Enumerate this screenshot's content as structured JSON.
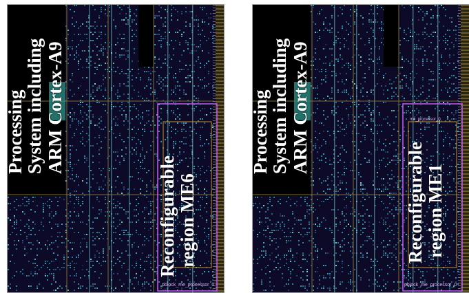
{
  "panels": [
    {
      "id": "me6",
      "processing_system_label": [
        "Processing",
        "System including",
        "ARM Cortex-A9"
      ],
      "region_label": [
        "Reconfigurable",
        "region ME6"
      ],
      "pblock_label": "pblock_me_processor_0"
    },
    {
      "id": "me1",
      "processing_system_label": [
        "Processing",
        "System including",
        "ARM Cortex-A9"
      ],
      "region_label": [
        "Reconfigurable",
        "region ME1"
      ],
      "pblock_label": "pblock_me_processor_0",
      "inner_label": "me_processor_0"
    }
  ],
  "colors": {
    "fabric_background": "#0d0a28",
    "logic_primary": "#2fa9c3",
    "logic_secondary": "#7fe3d8",
    "pblock_outline": "#c45cf0",
    "clock_region_lines": "#8a7a3a",
    "label_text": "#ffffff"
  }
}
